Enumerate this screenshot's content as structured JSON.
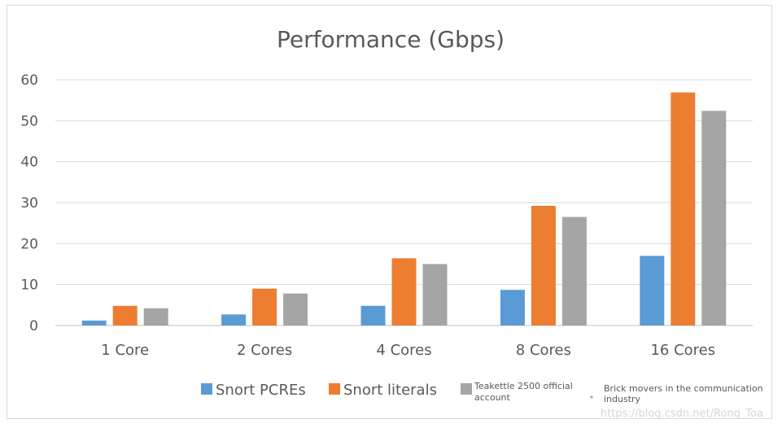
{
  "chart_data": {
    "type": "bar",
    "title": "Performance (Gbps)",
    "categories": [
      "1 Core",
      "2 Cores",
      "4 Cores",
      "8 Cores",
      "16 Cores"
    ],
    "series": [
      {
        "name": "Snort PCREs",
        "color": "#5b9bd5",
        "values": [
          1.2,
          2.7,
          4.8,
          8.7,
          17.0
        ]
      },
      {
        "name": "Snort literals",
        "color": "#ed7d31",
        "values": [
          4.8,
          9.0,
          16.4,
          29.2,
          56.9
        ]
      },
      {
        "name": "Teakettle 2500 official account",
        "color": "#a5a5a5",
        "values": [
          4.2,
          7.8,
          15.0,
          26.5,
          52.4
        ]
      }
    ],
    "yticks": [
      0,
      10,
      20,
      30,
      40,
      50,
      60
    ],
    "ylim": [
      0,
      60
    ],
    "grid": true,
    "legend_position": "bottom"
  },
  "legend_extra": {
    "label": "Brick movers in the communication industry"
  },
  "watermark": "https://blog.csdn.net/Rong_Toa"
}
